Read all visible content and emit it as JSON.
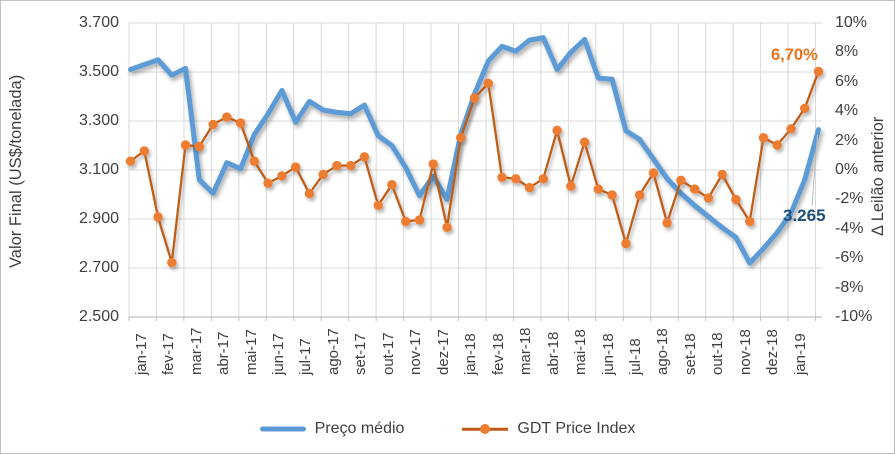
{
  "chart_data": {
    "type": "line",
    "title": "",
    "x_categories": [
      "jan-17",
      "fev-17",
      "mar-17",
      "abr-17",
      "mai-17",
      "jun-17",
      "jul-17",
      "ago-17",
      "set-17",
      "out-17",
      "nov-17",
      "dez-17",
      "jan-18",
      "fev-18",
      "mar-18",
      "abr-18",
      "mai-18",
      "jun-18",
      "jul-18",
      "ago-18",
      "set-18",
      "out-18",
      "nov-18",
      "dez-18",
      "jan-19"
    ],
    "points_per_month": 2,
    "left_axis": {
      "title": "Valor Final (US$/tonelada)",
      "ticks": [
        "3.700",
        "3.500",
        "3.300",
        "3.100",
        "2.900",
        "2.700",
        "2.500"
      ],
      "min": 2500,
      "max": 3700,
      "step": 200
    },
    "right_axis": {
      "title": "Δ Leilão anterior",
      "ticks": [
        "10%",
        "8%",
        "6%",
        "4%",
        "2%",
        "0%",
        "-2%",
        "-4%",
        "-6%",
        "-8%",
        "-10%"
      ],
      "min": -10,
      "max": 10,
      "step": 2
    },
    "grid": true,
    "legend_position": "bottom",
    "series": [
      {
        "name": "Preço médio",
        "axis": "left",
        "unit": "US$/tonelada",
        "color": "#5b9bd5",
        "values": [
          3510,
          3530,
          3550,
          3487,
          3515,
          3060,
          3005,
          3130,
          3105,
          3245,
          3330,
          3425,
          3295,
          3380,
          3345,
          3335,
          3330,
          3365,
          3240,
          3200,
          3110,
          2995,
          3075,
          2980,
          3245,
          3410,
          3545,
          3605,
          3585,
          3630,
          3640,
          3510,
          3580,
          3633,
          3475,
          3470,
          3260,
          3225,
          3145,
          3065,
          3005,
          2955,
          2910,
          2865,
          2825,
          2720,
          2780,
          2845,
          2925,
          3060,
          3265
        ]
      },
      {
        "name": "GDT Price Index",
        "axis": "right",
        "unit": "%",
        "color": "#ed7d31",
        "line_color": "#bf5b17",
        "values": [
          0.6,
          1.3,
          -3.2,
          -6.3,
          1.7,
          1.6,
          3.1,
          3.6,
          3.2,
          0.6,
          -0.9,
          -0.4,
          0.2,
          -1.6,
          -0.3,
          0.3,
          0.3,
          0.9,
          -2.4,
          -1.0,
          -3.5,
          -3.4,
          0.4,
          -3.9,
          2.2,
          4.9,
          5.9,
          -0.5,
          -0.6,
          -1.2,
          -0.6,
          2.7,
          -1.1,
          1.9,
          -1.3,
          -1.7,
          -5.0,
          -1.7,
          -0.2,
          -3.6,
          -0.7,
          -1.3,
          -1.9,
          -0.3,
          -2.0,
          -3.5,
          2.2,
          1.7,
          2.8,
          4.2,
          6.7
        ]
      }
    ],
    "annotations": [
      {
        "text": "6,70%",
        "series": "GDT Price Index",
        "color": "#e8731a"
      },
      {
        "text": "3.265",
        "series": "Preço médio",
        "color": "#1f4e79"
      }
    ],
    "legend": [
      "Preço médio",
      "GDT Price Index"
    ]
  }
}
